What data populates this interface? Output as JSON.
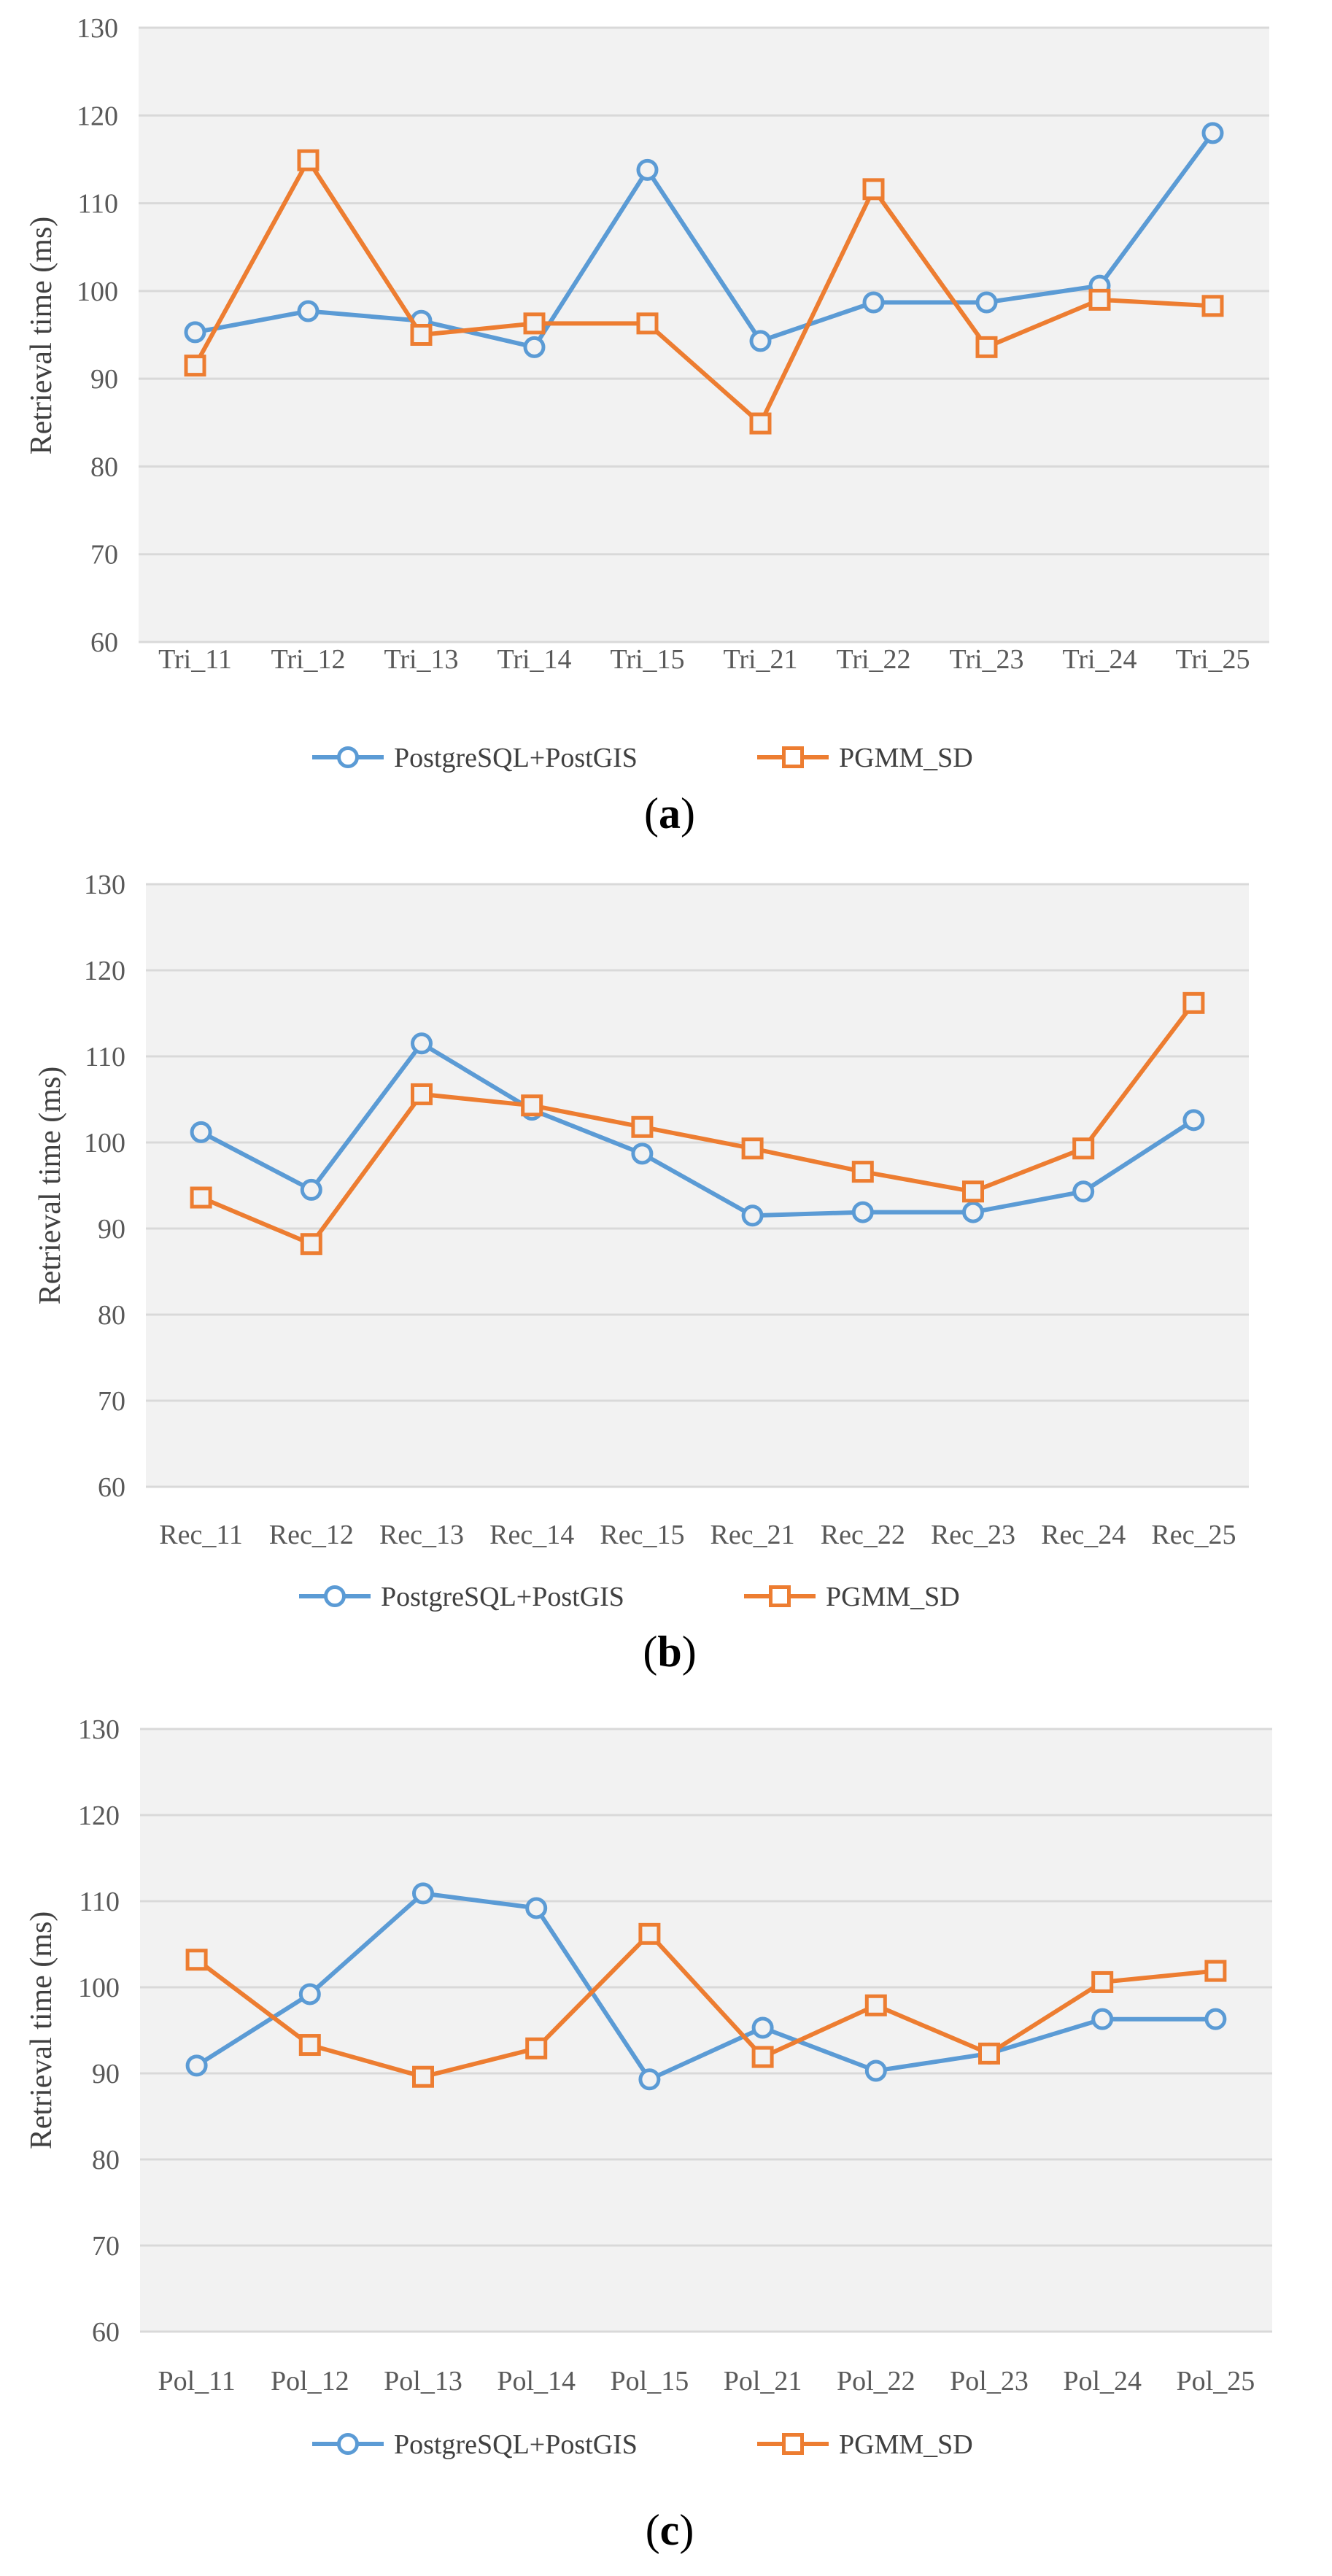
{
  "colors": {
    "series1": "#5B9BD5",
    "series2": "#ED7D31",
    "plot_bg": "#F2F2F2",
    "grid": "#D9D9D9"
  },
  "chart_data": [
    {
      "type": "line",
      "caption": "a",
      "ylabel": "Retrieval time (ms)",
      "ylim": [
        60,
        130
      ],
      "yticks": [
        "60",
        "70",
        "80",
        "90",
        "100",
        "110",
        "120",
        "130"
      ],
      "categories": [
        "Tri_11",
        "Tri_12",
        "Tri_13",
        "Tri_14",
        "Tri_15",
        "Tri_21",
        "Tri_22",
        "Tri_23",
        "Tri_24",
        "Tri_25"
      ],
      "series": [
        {
          "name": "PostgreSQL+PostGIS",
          "marker": "circle",
          "values": [
            95.3,
            97.7,
            96.6,
            93.6,
            113.8,
            94.3,
            98.7,
            98.7,
            100.6,
            118.0
          ]
        },
        {
          "name": "PGMM_SD",
          "marker": "square",
          "values": [
            91.5,
            114.9,
            95.0,
            96.3,
            96.3,
            84.9,
            111.6,
            93.6,
            99.0,
            98.3
          ]
        }
      ]
    },
    {
      "type": "line",
      "caption": "b",
      "ylabel": "Retrieval time (ms)",
      "ylim": [
        60,
        130
      ],
      "yticks": [
        "60",
        "70",
        "80",
        "90",
        "100",
        "110",
        "120",
        "130"
      ],
      "categories": [
        "Rec_11",
        "Rec_12",
        "Rec_13",
        "Rec_14",
        "Rec_15",
        "Rec_21",
        "Rec_22",
        "Rec_23",
        "Rec_24",
        "Rec_25"
      ],
      "series": [
        {
          "name": "PostgreSQL+PostGIS",
          "marker": "circle",
          "values": [
            101.2,
            94.5,
            111.5,
            103.8,
            98.7,
            91.5,
            91.9,
            91.9,
            94.3,
            102.6
          ]
        },
        {
          "name": "PGMM_SD",
          "marker": "square",
          "values": [
            93.6,
            88.2,
            105.6,
            104.3,
            101.8,
            99.3,
            96.6,
            94.3,
            99.3,
            116.2
          ]
        }
      ]
    },
    {
      "type": "line",
      "caption": "c",
      "ylabel": "Retrieval time (ms)",
      "ylim": [
        60,
        130
      ],
      "yticks": [
        "60",
        "70",
        "80",
        "90",
        "100",
        "110",
        "120",
        "130"
      ],
      "categories": [
        "Pol_11",
        "Pol_12",
        "Pol_13",
        "Pol_14",
        "Pol_15",
        "Pol_21",
        "Pol_22",
        "Pol_23",
        "Pol_24",
        "Pol_25"
      ],
      "series": [
        {
          "name": "PostgreSQL+PostGIS",
          "marker": "circle",
          "values": [
            90.9,
            99.2,
            110.9,
            109.2,
            89.3,
            95.3,
            90.3,
            92.3,
            96.3,
            96.3
          ]
        },
        {
          "name": "PGMM_SD",
          "marker": "square",
          "values": [
            103.2,
            93.3,
            89.6,
            92.9,
            106.2,
            91.9,
            97.9,
            92.3,
            100.6,
            101.9
          ]
        }
      ]
    }
  ]
}
